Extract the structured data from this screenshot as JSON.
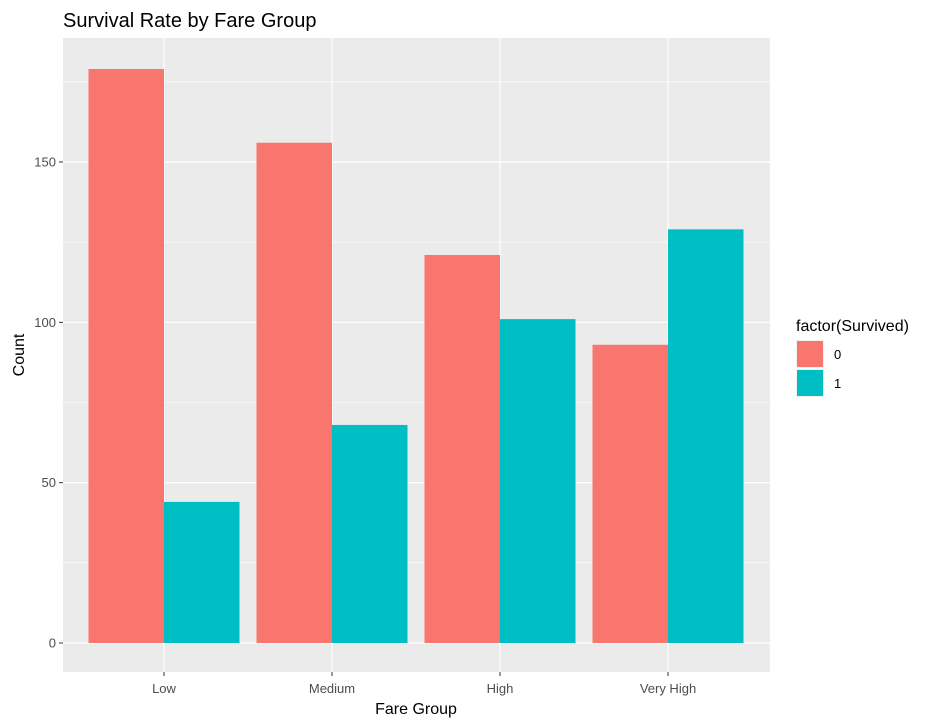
{
  "chart_data": {
    "type": "bar",
    "title": "Survival Rate by Fare Group",
    "xlabel": "Fare Group",
    "ylabel": "Count",
    "categories": [
      "Low",
      "Medium",
      "High",
      "Very High"
    ],
    "series": [
      {
        "name": "0",
        "color": "#F8766D",
        "values": [
          179,
          156,
          121,
          93
        ]
      },
      {
        "name": "1",
        "color": "#00BFC4",
        "values": [
          44,
          68,
          101,
          129
        ]
      }
    ],
    "ylim": [
      0,
      187
    ],
    "yticks": [
      0,
      50,
      100,
      150
    ],
    "ytick_labels": [
      "0",
      "50",
      "100",
      "150"
    ],
    "legend_title": "factor(Survived)",
    "legend_position": "right",
    "grid": true,
    "background": "#EBEBEB",
    "grid_color": "#FFFFFF"
  }
}
